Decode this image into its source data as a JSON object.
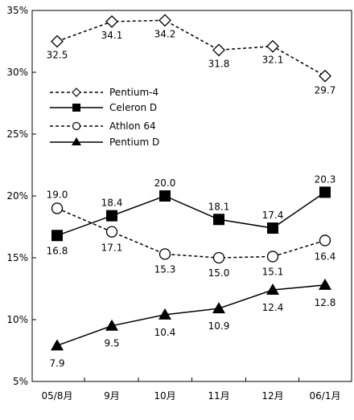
{
  "chart_data": {
    "type": "line",
    "categories": [
      "05/8月",
      "9月",
      "10月",
      "11月",
      "12月",
      "06/1月"
    ],
    "ylim": [
      5,
      35
    ],
    "yticks": [
      5,
      10,
      15,
      20,
      25,
      30,
      35
    ],
    "ytick_labels": [
      "5%",
      "10%",
      "15%",
      "20%",
      "25%",
      "30%",
      "35%"
    ],
    "grid": false,
    "legend_position": "left",
    "series": [
      {
        "name": "Pentium-4",
        "values": [
          32.5,
          34.1,
          34.2,
          31.8,
          32.1,
          29.7
        ],
        "labels": [
          "32.5",
          "34.1",
          "34.2",
          "31.8",
          "32.1",
          "29.7"
        ],
        "line": "dashed",
        "marker": "diamond-open"
      },
      {
        "name": "Celeron D",
        "values": [
          16.8,
          18.4,
          20.0,
          18.1,
          17.4,
          20.3
        ],
        "labels": [
          "16.8",
          "18.4",
          "20.0",
          "18.1",
          "17.4",
          "20.3"
        ],
        "line": "solid",
        "marker": "square-filled"
      },
      {
        "name": "Athlon 64",
        "values": [
          19.0,
          17.1,
          15.3,
          15.0,
          15.1,
          16.4
        ],
        "labels": [
          "19.0",
          "17.1",
          "15.3",
          "15.0",
          "15.1",
          "16.4"
        ],
        "line": "dashed",
        "marker": "circle-open"
      },
      {
        "name": "Pentium D",
        "values": [
          7.9,
          9.5,
          10.4,
          10.9,
          12.4,
          12.8
        ],
        "labels": [
          "7.9",
          "9.5",
          "10.4",
          "10.9",
          "12.4",
          "12.8"
        ],
        "line": "solid",
        "marker": "triangle-filled"
      }
    ]
  }
}
